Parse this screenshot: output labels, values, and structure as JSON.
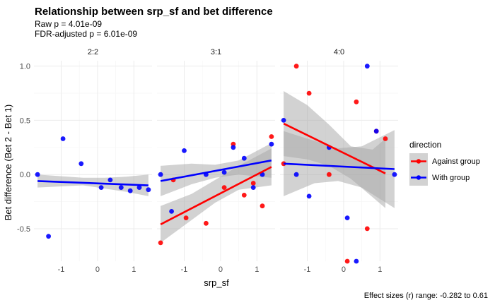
{
  "chart_data": {
    "type": "scatter",
    "title": "Relationship between srp_sf and bet difference",
    "subtitle_lines": [
      "Raw p = 4.01e-09",
      "FDR-adjusted p = 6.01e-09"
    ],
    "xlabel": "srp_sf",
    "ylabel": "Bet difference (Bet 2 - Bet 1)",
    "caption": "Effect sizes (r) range: -0.282 to 0.61",
    "xlim": [
      -1.75,
      1.5
    ],
    "ylim": [
      -0.8,
      1.05
    ],
    "x_ticks": [
      -1,
      0,
      1
    ],
    "x_tick_labels": [
      "-1",
      "0",
      "1"
    ],
    "y_ticks": [
      -0.5,
      0.0,
      0.5,
      1.0
    ],
    "y_tick_labels": [
      "-0.5",
      "0.0",
      "0.5",
      "1.0"
    ],
    "grid": true,
    "legend": {
      "title": "direction",
      "placement": "right",
      "entries": [
        {
          "label": "Against group",
          "color": "#ff0000"
        },
        {
          "label": "With group",
          "color": "#0000ff"
        }
      ]
    },
    "colors": {
      "against": "#ff0000",
      "with": "#0000ff",
      "band": "#a6a6a6"
    },
    "facets": [
      {
        "label": "2:2",
        "series": [
          {
            "name": "With group",
            "color": "#0000ff",
            "points": [
              [
                -1.65,
                0.0
              ],
              [
                -1.35,
                -0.57
              ],
              [
                -0.95,
                0.33
              ],
              [
                -0.45,
                0.1
              ],
              [
                0.1,
                -0.12
              ],
              [
                0.35,
                -0.05
              ],
              [
                0.65,
                -0.12
              ],
              [
                0.9,
                -0.15
              ],
              [
                1.15,
                -0.12
              ],
              [
                1.4,
                -0.14
              ]
            ],
            "fit": {
              "x": [
                -1.65,
                1.4
              ],
              "y": [
                -0.06,
                -0.1
              ]
            },
            "band": {
              "x": [
                -1.65,
                -0.4,
                0.2,
                0.8,
                1.4
              ],
              "lower": [
                -0.12,
                -0.1,
                -0.13,
                -0.16,
                -0.2
              ],
              "upper": [
                0.0,
                -0.03,
                -0.03,
                -0.02,
                0.0
              ]
            }
          }
        ]
      },
      {
        "label": "3:1",
        "series": [
          {
            "name": "Against group",
            "color": "#ff0000",
            "points": [
              [
                -1.65,
                -0.63
              ],
              [
                -1.3,
                -0.05
              ],
              [
                -0.95,
                -0.4
              ],
              [
                -0.4,
                -0.45
              ],
              [
                0.1,
                -0.12
              ],
              [
                0.35,
                0.28
              ],
              [
                0.65,
                -0.19
              ],
              [
                0.9,
                -0.08
              ],
              [
                1.15,
                -0.29
              ],
              [
                1.4,
                0.35
              ]
            ],
            "fit": {
              "x": [
                -1.65,
                1.4
              ],
              "y": [
                -0.46,
                0.07
              ]
            },
            "band": {
              "x": [
                -1.65,
                -0.8,
                -0.15,
                0.5,
                1.4
              ],
              "lower": [
                -0.63,
                -0.42,
                -0.26,
                -0.14,
                -0.1
              ],
              "upper": [
                -0.29,
                -0.18,
                -0.05,
                0.08,
                0.24
              ]
            }
          },
          {
            "name": "With group",
            "color": "#0000ff",
            "points": [
              [
                -1.65,
                0.0
              ],
              [
                -1.35,
                -0.34
              ],
              [
                -1.0,
                0.22
              ],
              [
                -0.4,
                0.0
              ],
              [
                0.1,
                0.02
              ],
              [
                0.35,
                0.25
              ],
              [
                0.65,
                0.15
              ],
              [
                0.9,
                -0.12
              ],
              [
                1.15,
                0.0
              ],
              [
                1.4,
                0.28
              ]
            ],
            "fit": {
              "x": [
                -1.65,
                1.4
              ],
              "y": [
                -0.06,
                0.13
              ]
            },
            "band": {
              "x": [
                -1.65,
                -0.8,
                -0.15,
                0.5,
                1.4
              ],
              "lower": [
                -0.2,
                -0.09,
                -0.03,
                0.0,
                -0.03
              ],
              "upper": [
                0.08,
                0.1,
                0.09,
                0.13,
                0.29
              ]
            }
          }
        ]
      },
      {
        "label": "4:0",
        "series": [
          {
            "name": "Against group",
            "color": "#ff0000",
            "points": [
              [
                -1.65,
                0.1
              ],
              [
                -1.3,
                1.0
              ],
              [
                -0.95,
                0.75
              ],
              [
                -0.4,
                0.0
              ],
              [
                0.1,
                -0.8
              ],
              [
                0.35,
                0.67
              ],
              [
                0.65,
                -0.5
              ],
              [
                0.9,
                0.4
              ],
              [
                1.15,
                0.33
              ]
            ],
            "fit": {
              "x": [
                -1.65,
                1.15
              ],
              "y": [
                0.47,
                0.01
              ]
            },
            "band": {
              "x": [
                -1.65,
                -1.0,
                -0.4,
                0.2,
                0.8,
                1.15
              ],
              "lower": [
                0.17,
                0.14,
                0.08,
                -0.04,
                -0.21,
                -0.31
              ],
              "upper": [
                0.77,
                0.64,
                0.46,
                0.26,
                0.23,
                0.33
              ]
            }
          },
          {
            "name": "With group",
            "color": "#0000ff",
            "points": [
              [
                -1.65,
                0.5
              ],
              [
                -1.3,
                0.0
              ],
              [
                -0.95,
                -0.2
              ],
              [
                -0.4,
                0.25
              ],
              [
                0.1,
                -0.4
              ],
              [
                0.35,
                -0.8
              ],
              [
                0.65,
                1.0
              ],
              [
                0.9,
                0.4
              ],
              [
                1.4,
                0.0
              ]
            ],
            "fit": {
              "x": [
                -1.65,
                1.4
              ],
              "y": [
                0.1,
                0.05
              ]
            },
            "band": {
              "x": [
                -1.65,
                -0.8,
                -0.15,
                0.5,
                1.4
              ],
              "lower": [
                -0.2,
                -0.08,
                -0.06,
                -0.12,
                -0.31
              ],
              "upper": [
                0.4,
                0.31,
                0.24,
                0.26,
                0.41
              ]
            }
          }
        ]
      }
    ]
  }
}
